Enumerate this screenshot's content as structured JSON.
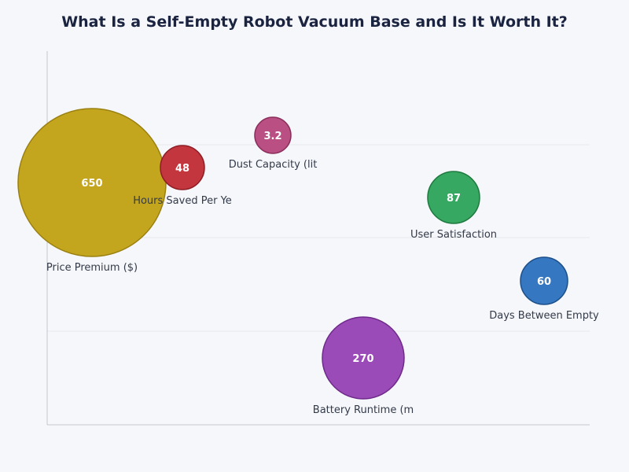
{
  "chart_data": {
    "type": "bubble",
    "title": "What Is a Self-Empty Robot Vacuum Base and Is It Worth It?",
    "xlabel": "",
    "ylabel": "",
    "grid": true,
    "legend": "none",
    "points": [
      {
        "label": "Price Premium ($)",
        "value": 650,
        "color": "#c4a61e",
        "stroke": "#9a8010"
      },
      {
        "label": "Hours Saved Per Ye",
        "value": 48,
        "color": "#c4363e",
        "stroke": "#8f1d25"
      },
      {
        "label": "Dust Capacity (lit",
        "value": 3.2,
        "color": "#b94f82",
        "stroke": "#8a2f5c"
      },
      {
        "label": "User Satisfaction",
        "value": 87,
        "color": "#37a862",
        "stroke": "#1e7a3f"
      },
      {
        "label": "Days Between Empty",
        "value": 60,
        "color": "#3577c0",
        "stroke": "#1d4f8a"
      },
      {
        "label": "Battery Runtime (m",
        "value": 270,
        "color": "#9b4bb8",
        "stroke": "#6e2a8a"
      }
    ]
  }
}
